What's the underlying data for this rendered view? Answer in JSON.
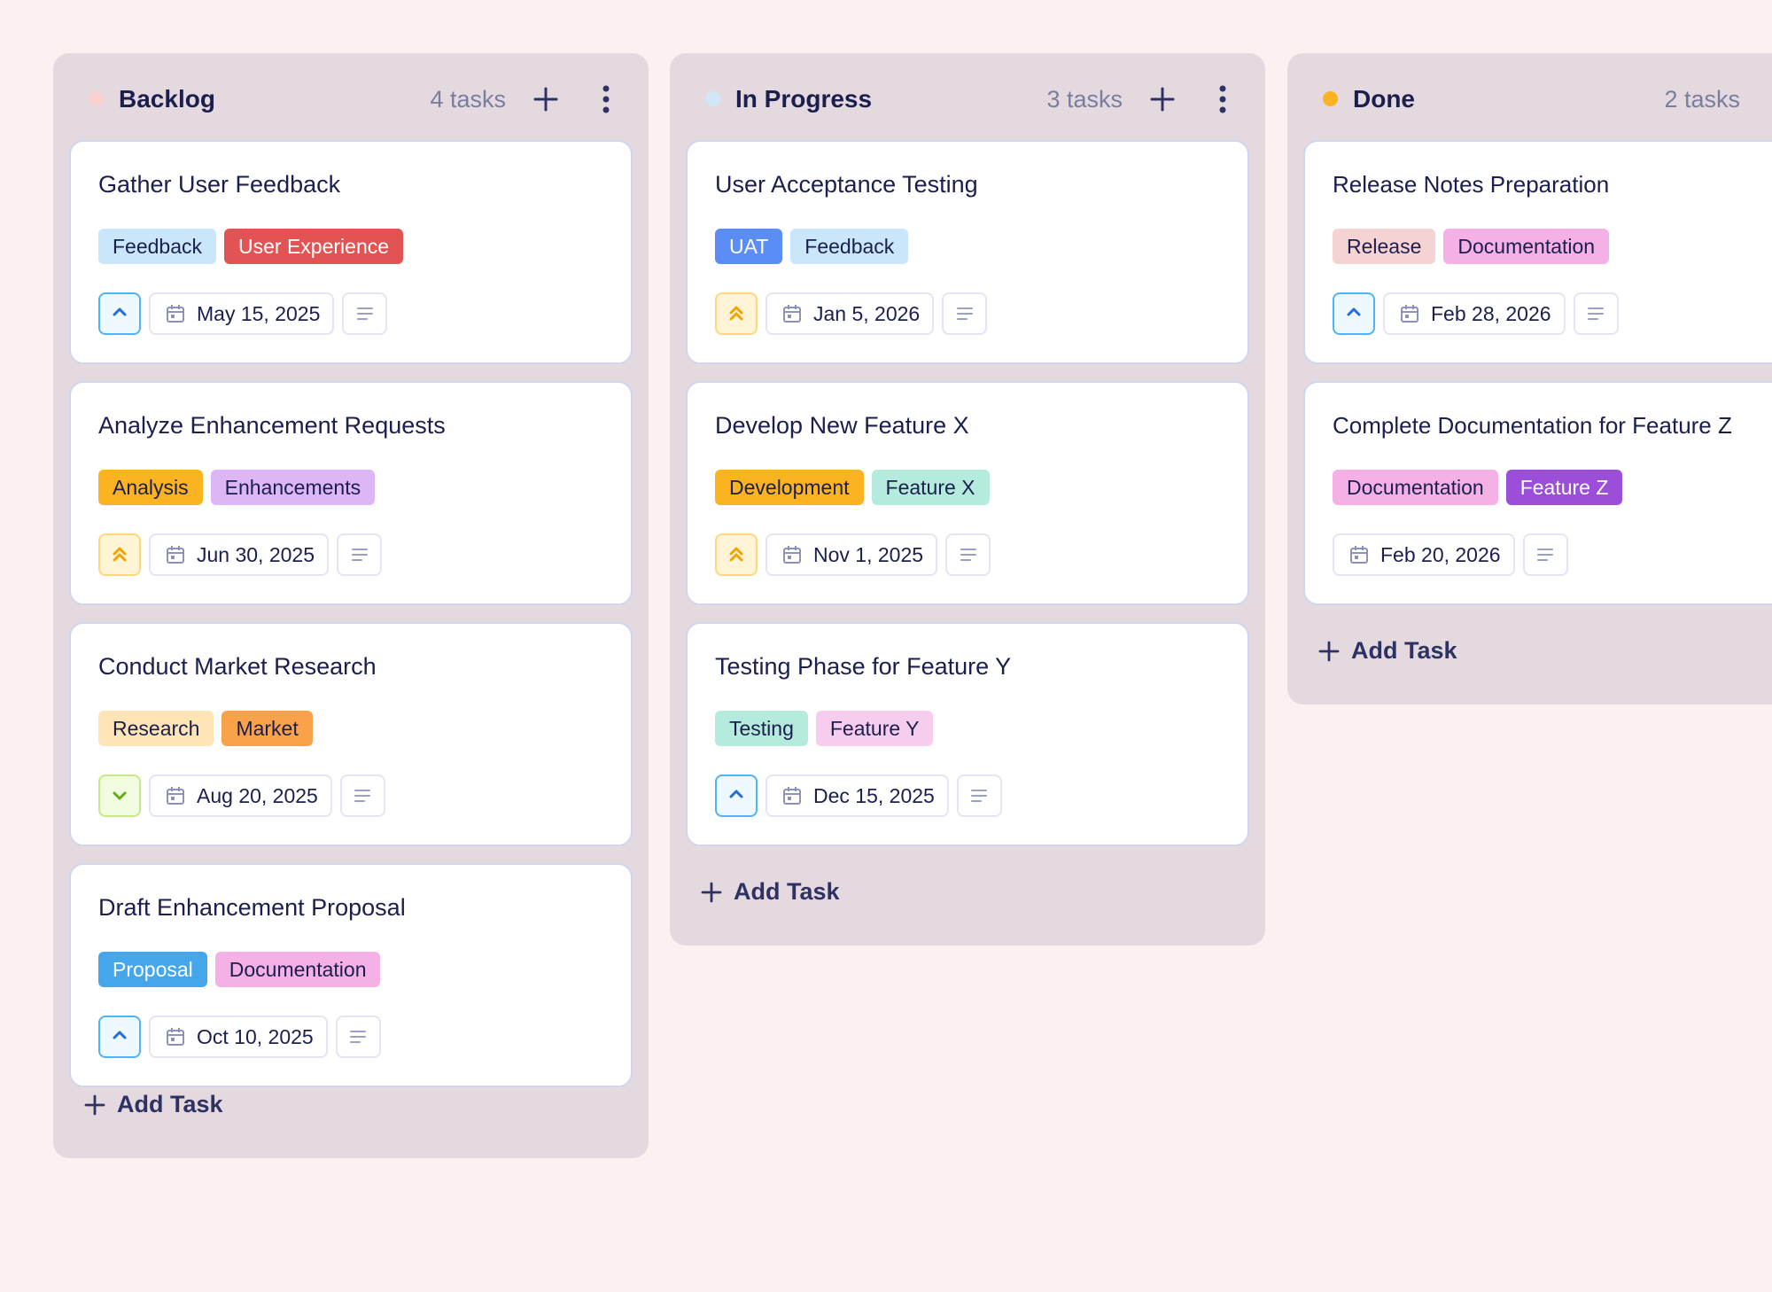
{
  "add_task_label": "Add Task",
  "columns": [
    {
      "title": "Backlog",
      "count": "4 tasks",
      "dot_color": "#f8d0d0",
      "cards": [
        {
          "title": "Gather User Feedback",
          "tags": [
            {
              "label": "Feedback",
              "bg": "#c9e6fb",
              "fg": "#1a1f4e"
            },
            {
              "label": "User Experience",
              "bg": "#e25353",
              "fg": "#ffffff"
            }
          ],
          "priority": "medium",
          "date": "May 15, 2025"
        },
        {
          "title": "Analyze Enhancement Requests",
          "tags": [
            {
              "label": "Analysis",
              "bg": "#fbb321",
              "fg": "#1a1f4e"
            },
            {
              "label": "Enhancements",
              "bg": "#dcb6f5",
              "fg": "#1a1f4e"
            }
          ],
          "priority": "high",
          "date": "Jun 30, 2025"
        },
        {
          "title": "Conduct Market Research",
          "tags": [
            {
              "label": "Research",
              "bg": "#fde5b5",
              "fg": "#1a1f4e"
            },
            {
              "label": "Market",
              "bg": "#f9a24a",
              "fg": "#1a1f4e"
            }
          ],
          "priority": "low",
          "date": "Aug 20, 2025"
        },
        {
          "title": "Draft Enhancement Proposal",
          "tags": [
            {
              "label": "Proposal",
              "bg": "#45a6ec",
              "fg": "#ffffff"
            },
            {
              "label": "Documentation",
              "bg": "#f5b1e6",
              "fg": "#1a1f4e"
            }
          ],
          "priority": "medium",
          "date": "Oct 10, 2025"
        }
      ]
    },
    {
      "title": "In Progress",
      "count": "3 tasks",
      "dot_color": "#cfe6f7",
      "cards": [
        {
          "title": "User Acceptance Testing",
          "tags": [
            {
              "label": "UAT",
              "bg": "#5b8ef5",
              "fg": "#ffffff"
            },
            {
              "label": "Feedback",
              "bg": "#c9e6fb",
              "fg": "#1a1f4e"
            }
          ],
          "priority": "high",
          "date": "Jan 5, 2026"
        },
        {
          "title": "Develop New Feature X",
          "tags": [
            {
              "label": "Development",
              "bg": "#fbb321",
              "fg": "#1a1f4e"
            },
            {
              "label": "Feature X",
              "bg": "#b5ebdc",
              "fg": "#1a1f4e"
            }
          ],
          "priority": "high",
          "date": "Nov 1, 2025"
        },
        {
          "title": "Testing Phase for Feature Y",
          "tags": [
            {
              "label": "Testing",
              "bg": "#b5ebdc",
              "fg": "#1a1f4e"
            },
            {
              "label": "Feature Y",
              "bg": "#f7cdef",
              "fg": "#1a1f4e"
            }
          ],
          "priority": "medium",
          "date": "Dec 15, 2025"
        }
      ]
    },
    {
      "title": "Done",
      "count": "2 tasks",
      "dot_color": "#fbb321",
      "cards": [
        {
          "title": "Release Notes Preparation",
          "tags": [
            {
              "label": "Release",
              "bg": "#f6d3d3",
              "fg": "#1a1f4e"
            },
            {
              "label": "Documentation",
              "bg": "#f5b1e6",
              "fg": "#1a1f4e"
            }
          ],
          "priority": "medium",
          "date": "Feb 28, 2026"
        },
        {
          "title": "Complete Documentation for Feature Z",
          "tags": [
            {
              "label": "Documentation",
              "bg": "#f5b1e6",
              "fg": "#1a1f4e"
            },
            {
              "label": "Feature Z",
              "bg": "#9b4fd8",
              "fg": "#ffffff"
            }
          ],
          "priority": "none",
          "date": "Feb 20, 2026"
        }
      ]
    }
  ]
}
